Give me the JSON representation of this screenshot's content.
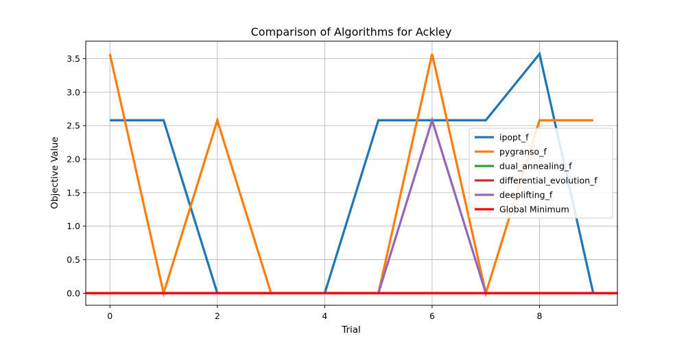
{
  "chart_data": {
    "type": "line",
    "title": "Comparison of Algorithms for Ackley",
    "xlabel": "Trial",
    "ylabel": "Objective Value",
    "x": [
      0,
      1,
      2,
      3,
      4,
      5,
      6,
      7,
      8,
      9
    ],
    "xlim": [
      -0.45,
      9.45
    ],
    "ylim": [
      -0.18,
      3.76
    ],
    "xticks": [
      0,
      2,
      4,
      6,
      8
    ],
    "yticks": [
      0.0,
      0.5,
      1.0,
      1.5,
      2.0,
      2.5,
      3.0,
      3.5
    ],
    "xtick_labels": [
      "0",
      "2",
      "4",
      "6",
      "8"
    ],
    "ytick_labels": [
      "0.0",
      "0.5",
      "1.0",
      "1.5",
      "2.0",
      "2.5",
      "3.0",
      "3.5"
    ],
    "grid": true,
    "legend_position": "center-right",
    "series": [
      {
        "name": "ipopt_f",
        "color": "#1f77b4",
        "values": [
          2.58,
          2.58,
          0,
          0,
          0,
          2.58,
          2.58,
          2.58,
          3.57,
          0
        ]
      },
      {
        "name": "pygranso_f",
        "color": "#ff7f0e",
        "values": [
          3.57,
          0,
          2.58,
          0,
          0,
          0,
          3.57,
          0,
          2.58,
          2.58
        ]
      },
      {
        "name": "dual_annealing_f",
        "color": "#2ca02c",
        "values": [
          0,
          0,
          0,
          0,
          0,
          0,
          0,
          0,
          0,
          0
        ]
      },
      {
        "name": "differential_evolution_f",
        "color": "#d62728",
        "values": [
          0,
          0,
          0,
          0,
          0,
          0,
          0,
          0,
          0,
          0
        ]
      },
      {
        "name": "deeplifting_f",
        "color": "#9467bd",
        "values": [
          0,
          0,
          0,
          0,
          0,
          0,
          2.58,
          0,
          0,
          0
        ]
      }
    ],
    "reference_line": {
      "name": "Global Minimum",
      "color": "#ff0000",
      "y": 0
    }
  }
}
